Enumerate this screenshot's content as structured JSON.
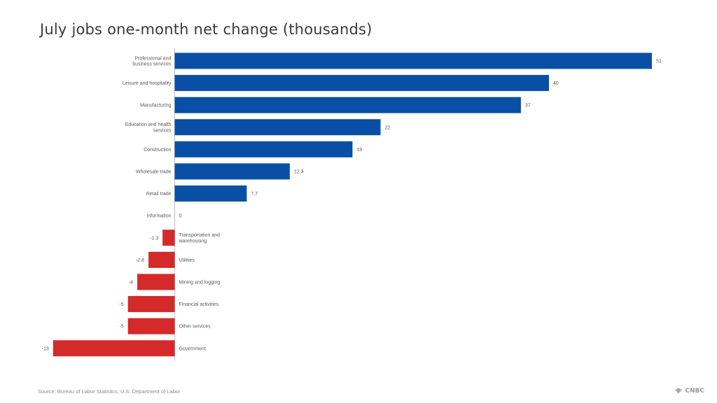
{
  "title": "July jobs one-month net change (thousands)",
  "source": "Source: Bureau of Labor Statistics, U.S. Department of Labor",
  "brand": "CNBC",
  "colors": {
    "positive": "#0a4fa6",
    "negative": "#d42a2a",
    "axis": "#bdbdbd",
    "label": "#5a5a5a"
  },
  "chart_data": {
    "type": "bar",
    "orientation": "horizontal",
    "categories": [
      "Professional and business services",
      "Leisure and hospitality",
      "Manufacturing",
      "Education and health services",
      "Construction",
      "Wholesale trade",
      "Retail trade",
      "Information",
      "Transportation and warehousing",
      "Utilities",
      "Mining and logging",
      "Financial activities",
      "Other services",
      "Government"
    ],
    "values": [
      51,
      40,
      37,
      22,
      19,
      12.3,
      7.7,
      0,
      -1.3,
      -2.8,
      -4,
      -5,
      -5,
      -13
    ],
    "value_labels": [
      "51",
      "40",
      "37",
      "22",
      "19",
      "12.3",
      "7.7",
      "0",
      "-1.3",
      "-2.8",
      "-4",
      "-5",
      "-5",
      "-13"
    ],
    "title": "July jobs one-month net change (thousands)",
    "grid": false
  }
}
